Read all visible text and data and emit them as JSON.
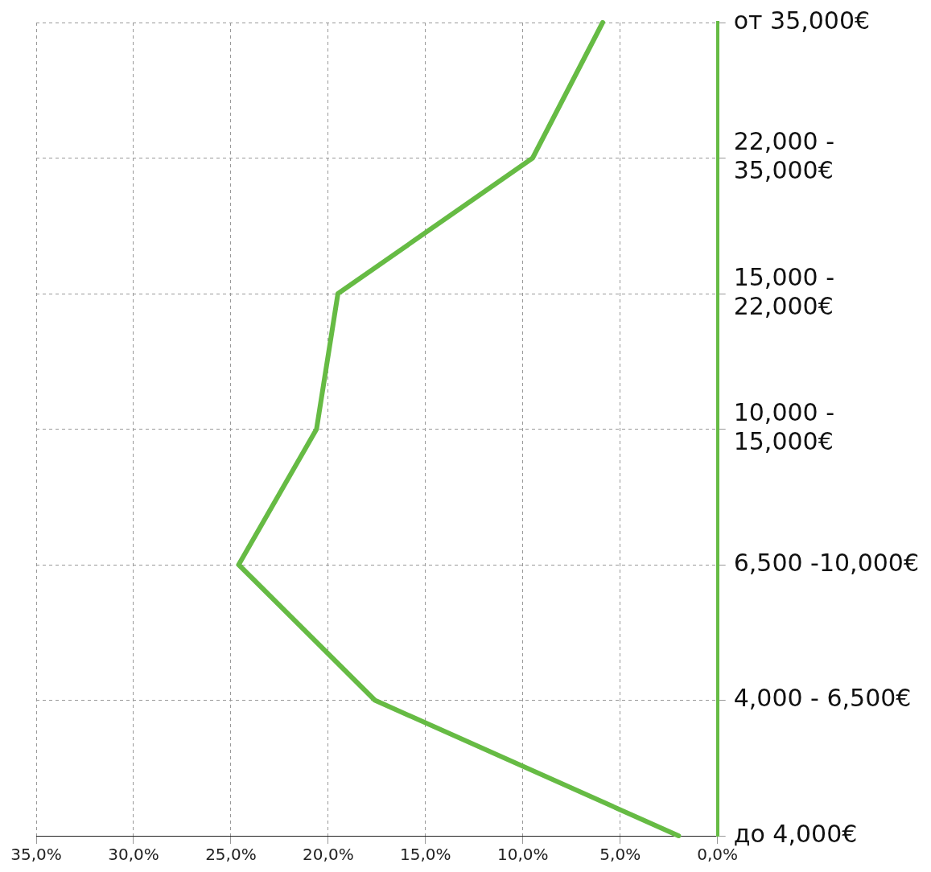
{
  "chart_data": {
    "type": "line",
    "orientation": "horizontal",
    "categories": [
      "от 35,000€",
      "22,000 - 35,000€",
      "15,000 - 22,000€",
      "10,000 - 15,000€",
      "6,500 -10,000€",
      "4,000 - 6,500€",
      "до 4,000€"
    ],
    "series": [
      {
        "color": "#66bb44",
        "values": [
          5.9,
          9.5,
          19.5,
          20.6,
          24.6,
          17.6,
          2.0
        ]
      }
    ],
    "xlim": [
      35,
      0
    ],
    "xticks": [
      {
        "value": 35,
        "label": "35,0%"
      },
      {
        "value": 30,
        "label": "30,0%"
      },
      {
        "value": 25,
        "label": "25,0%"
      },
      {
        "value": 20,
        "label": "20,0%"
      },
      {
        "value": 15,
        "label": "15,0%"
      },
      {
        "value": 10,
        "label": "10,0%"
      },
      {
        "value": 5,
        "label": "5,0%"
      },
      {
        "value": 0,
        "label": "0,0%"
      }
    ],
    "grid": true,
    "legend": false,
    "marker": "none",
    "line_style": "solid"
  }
}
